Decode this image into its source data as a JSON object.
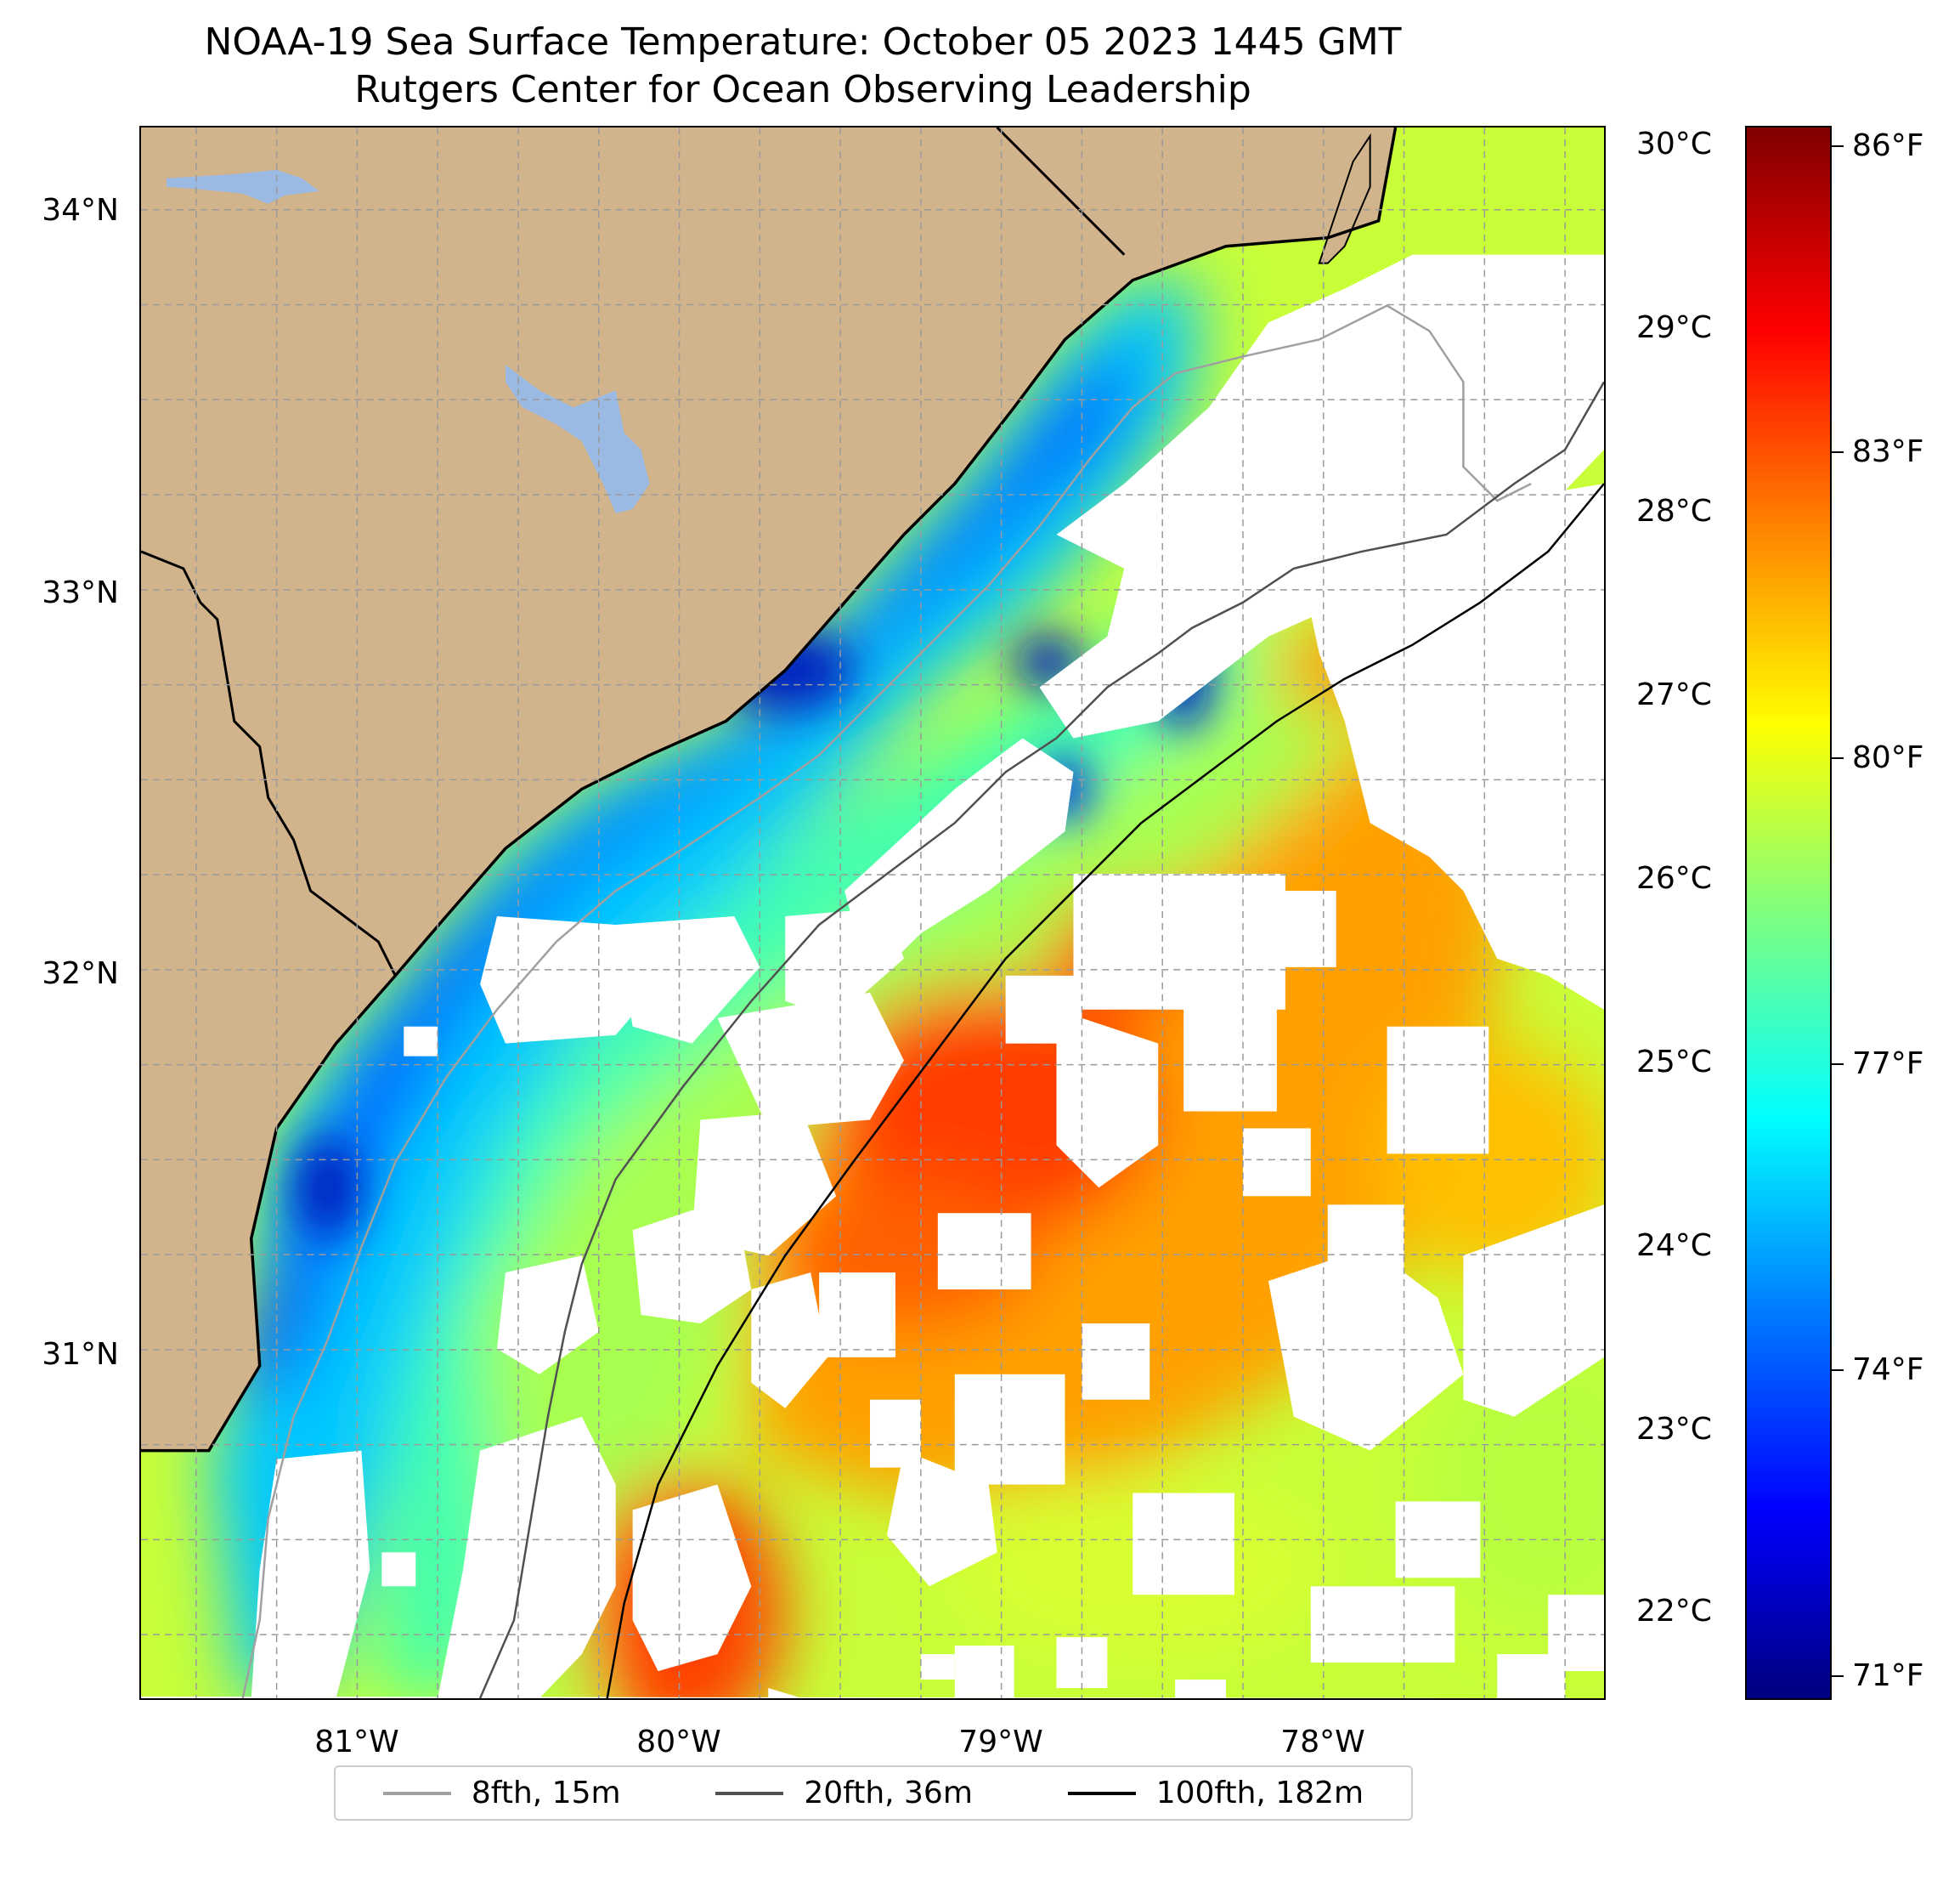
{
  "title": {
    "line1": "NOAA-19 Sea Surface Temperature: October 05 2023 1445 GMT",
    "line2": "Rutgers Center for Ocean Observing Leadership"
  },
  "map": {
    "lat_labels": [
      "34°N",
      "33°N",
      "32°N",
      "31°N"
    ],
    "lon_labels": [
      "81°W",
      "80°W",
      "79°W",
      "78°W"
    ],
    "land_color": "#d2b48c",
    "water_body_color": "#9ab9e3",
    "no_data_color": "#ffffff",
    "gridlines": true
  },
  "colorbar": {
    "celsius_labels": [
      "30°C",
      "29°C",
      "28°C",
      "27°C",
      "26°C",
      "25°C",
      "24°C",
      "23°C",
      "22°C"
    ],
    "fahrenheit_labels": [
      "86°F",
      "83°F",
      "80°F",
      "77°F",
      "74°F",
      "71°F"
    ],
    "colormap": "jet",
    "colors": [
      "#00007f",
      "#0000ff",
      "#007fff",
      "#00ffff",
      "#7fff7f",
      "#ffff00",
      "#ff7f00",
      "#ff0000",
      "#7f0000"
    ]
  },
  "legend": {
    "items": [
      {
        "label": "8fth, 15m",
        "color": "#a0a0a0"
      },
      {
        "label": "20fth, 36m",
        "color": "#505050"
      },
      {
        "label": "100fth, 182m",
        "color": "#000000"
      }
    ],
    "placement": "bottom-center"
  }
}
